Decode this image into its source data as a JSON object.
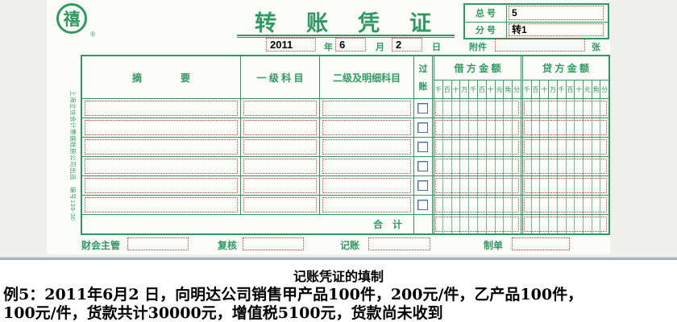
{
  "colors": {
    "green": "#2e9960",
    "light_green": "#6bbd92",
    "red_dotted": "#e23d30",
    "checkbox_border": "#4e6e8e",
    "background_gray": "#eff0ec",
    "divider_blue_gray": "#a6b2c3"
  },
  "voucher": {
    "logo_char": "禧",
    "registered_mark": "®",
    "title": "转　账　凭　证",
    "serial": {
      "total_label": "总 号",
      "total_value": "5",
      "sub_label": "分 号",
      "sub_value": "转1"
    },
    "date": {
      "year": "2011",
      "year_unit": "年",
      "month": "6",
      "month_unit": "月",
      "day": "2",
      "day_unit": "日"
    },
    "attachment": {
      "label": "附件",
      "unit": "张"
    },
    "table": {
      "headers": {
        "summary": "摘　　　　要",
        "level1": "一 级 科 目",
        "level2": "二级及明细科目",
        "posting_top": "过",
        "posting_bottom": "账",
        "debit": "借 方 金 额",
        "credit": "贷 方 金 额"
      },
      "digits": [
        "千",
        "百",
        "十",
        "万",
        "千",
        "百",
        "十",
        "元",
        "角",
        "分"
      ],
      "body_rows": 6,
      "total_label": "合　计"
    },
    "signatures": {
      "supervisor": "财会主管",
      "reviewer": "复核",
      "bookkeeper": "记账",
      "preparer": "制单"
    },
    "side_note": "上海立信会计票据账册公司出品　编号139-30"
  },
  "caption": {
    "title": "记账凭证的填制",
    "line1": "例5：2011年6月2 日，向明达公司销售甲产品100件，200元/件，乙产品100件，",
    "line2": "100元/件，货款共计30000元，增值税5100元，货款尚未收到"
  }
}
